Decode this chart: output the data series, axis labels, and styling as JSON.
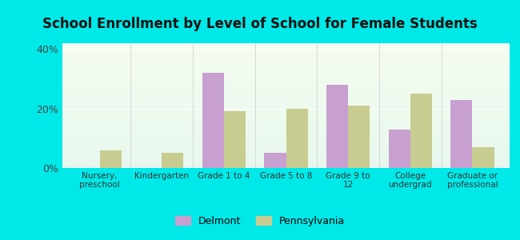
{
  "title": "School Enrollment by Level of School for Female Students",
  "categories": [
    "Nursery,\npreschool",
    "Kindergarten",
    "Grade 1 to 4",
    "Grade 5 to 8",
    "Grade 9 to\n12",
    "College\nundergrad",
    "Graduate or\nprofessional"
  ],
  "delmont": [
    0.0,
    0.0,
    32.0,
    5.0,
    28.0,
    13.0,
    23.0
  ],
  "pennsylvania": [
    6.0,
    5.0,
    19.0,
    20.0,
    21.0,
    25.0,
    7.0
  ],
  "delmont_color": "#c8a0d0",
  "pennsylvania_color": "#c8cc90",
  "background_color": "#00e8e8",
  "plot_bg_top": "#f5fdf0",
  "plot_bg_bottom": "#e8f8ee",
  "ylim": [
    0,
    42
  ],
  "yticks": [
    0,
    20,
    40
  ],
  "ytick_labels": [
    "0%",
    "20%",
    "40%"
  ],
  "legend_delmont": "Delmont",
  "legend_pennsylvania": "Pennsylvania",
  "title_fontsize": 12,
  "bar_width": 0.35
}
